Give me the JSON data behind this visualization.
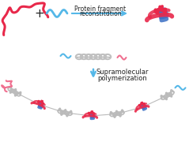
{
  "background_color": "#ffffff",
  "text1": "Protein fragment",
  "text2": "reconstitution",
  "text3": "Supramolecular",
  "text4": "polymerization",
  "red_color": "#e8284a",
  "blue_color": "#3a6ec4",
  "gray_color": "#aaaaaa",
  "pink_color": "#f07090",
  "cyan_color": "#55b8e8",
  "text_color": "#222222",
  "figsize": [
    2.39,
    1.89
  ],
  "dpi": 100
}
